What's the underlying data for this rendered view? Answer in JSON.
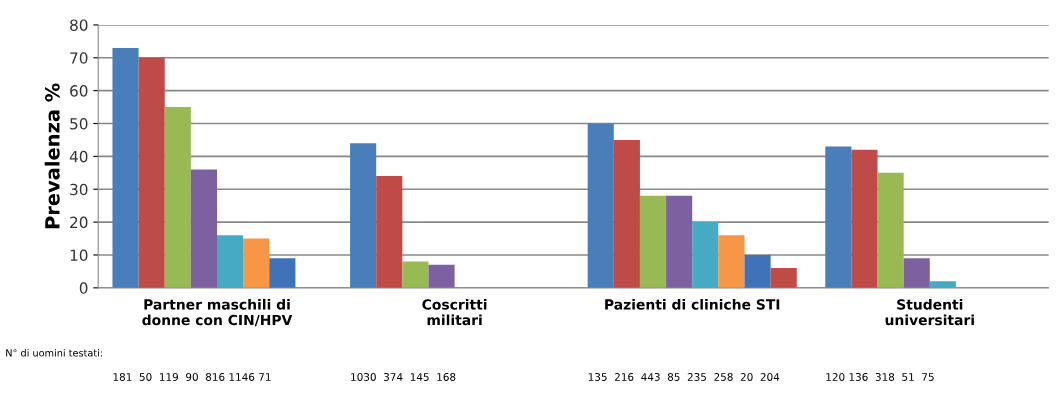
{
  "chart_data": {
    "type": "bar",
    "ylabel": "Prevalenza %",
    "categories": [
      "Partner maschili di\ndonne con CIN/HPV",
      "Coscritti\nmilitari",
      "Pazienti di cliniche STI",
      "Studenti\nuniversitari"
    ],
    "series": [
      {
        "color": "#4a7ebb",
        "values": [
          73,
          44,
          50,
          43
        ]
      },
      {
        "color": "#be4b48",
        "values": [
          70,
          34,
          45,
          42
        ]
      },
      {
        "color": "#98b954",
        "values": [
          55,
          8,
          28,
          35
        ]
      },
      {
        "color": "#7d60a0",
        "values": [
          36,
          7,
          28,
          9
        ]
      },
      {
        "color": "#46aac5",
        "values": [
          16,
          null,
          20,
          2
        ]
      },
      {
        "color": "#f79646",
        "values": [
          15,
          null,
          16,
          null
        ]
      },
      {
        "color": "#3f72b8",
        "values": [
          9,
          null,
          10,
          null
        ]
      },
      {
        "color": "#c04a46",
        "values": [
          null,
          null,
          6,
          null
        ]
      }
    ],
    "ylim": [
      0,
      80
    ],
    "yticks": [
      0,
      10,
      20,
      30,
      40,
      50,
      60,
      70,
      80
    ],
    "grid": "y",
    "legend": false,
    "annotations": [
      "N° di uomini testati:",
      "181  50  119  90  816 1146 71",
      "1030  374  145  168",
      "135  216  443  85  235  258  20  204",
      "120 136  318  51  75"
    ]
  }
}
